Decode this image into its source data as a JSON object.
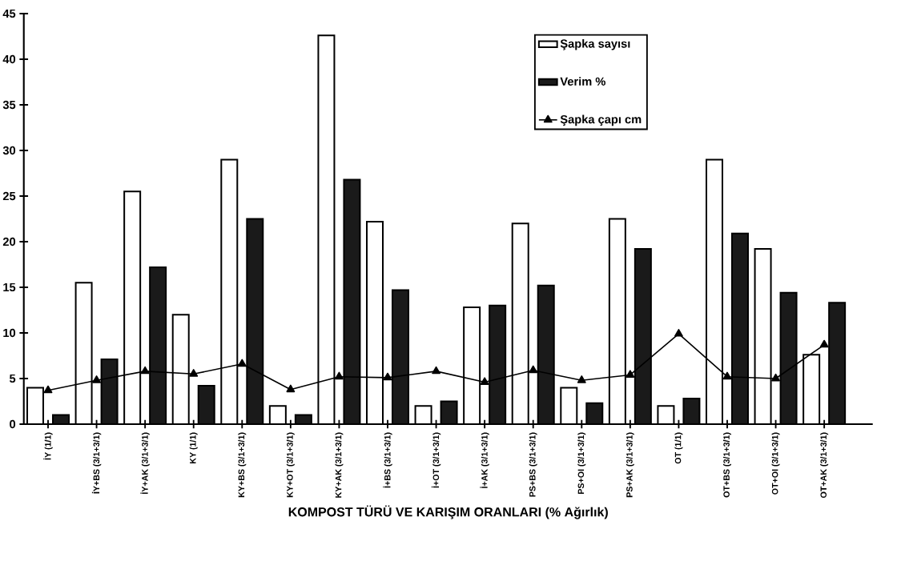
{
  "chart_data": {
    "type": "bar",
    "xlabel": "KOMPOST TÜRÜ VE KARIŞIM ORANLARI (% Ağırlık)",
    "categories": [
      "İY (1/1)",
      "İY+BS (3/1+3/1)",
      "İY+AK (3/1+3/1)",
      "KY (1/1)",
      "KY+BS (3/1+3/1)",
      "KY+OT (3/1+3/1)",
      "KY+AK (3/1+3/1)",
      "İ+BS (3/1+3/1)",
      "İ+OT (3/1+3/1)",
      "İ+AK (3/1+3/1)",
      "PS+BS (3/1+3/1)",
      "PS+OI (3/1+3/1)",
      "PS+AK (3/1+3/1)",
      "OT (1/1)",
      "OT+BS (3/1+3/1)",
      "OT+OI (3/1+3/1)",
      "OT+AK (3/1+3/1)"
    ],
    "series": [
      {
        "name": "Şapka sayısı",
        "color": "#ffffff",
        "values": [
          4,
          15.5,
          25.5,
          12,
          29,
          2,
          42.6,
          22.2,
          2,
          12.8,
          22,
          4,
          22.5,
          2,
          29,
          19.2,
          7.6
        ]
      },
      {
        "name": "Verim %",
        "color": "#1a1a1a",
        "values": [
          1,
          7.1,
          17.2,
          4.2,
          22.5,
          1,
          26.8,
          14.7,
          2.5,
          13,
          15.2,
          2.3,
          19.2,
          2.8,
          20.9,
          14.4,
          13.3
        ]
      },
      {
        "name": "Şapka çapı cm",
        "type": "line",
        "color": "#000000",
        "marker": "triangle",
        "values": [
          3.7,
          4.8,
          5.8,
          5.5,
          6.6,
          3.8,
          5.2,
          5.1,
          5.8,
          4.6,
          5.9,
          4.8,
          5.4,
          9.9,
          5.2,
          5.0,
          8.7
        ]
      }
    ],
    "ylim": [
      0,
      45
    ],
    "yticks": [
      0,
      5,
      10,
      15,
      20,
      25,
      30,
      35,
      40,
      45
    ],
    "grid": false,
    "legend": "top right"
  }
}
